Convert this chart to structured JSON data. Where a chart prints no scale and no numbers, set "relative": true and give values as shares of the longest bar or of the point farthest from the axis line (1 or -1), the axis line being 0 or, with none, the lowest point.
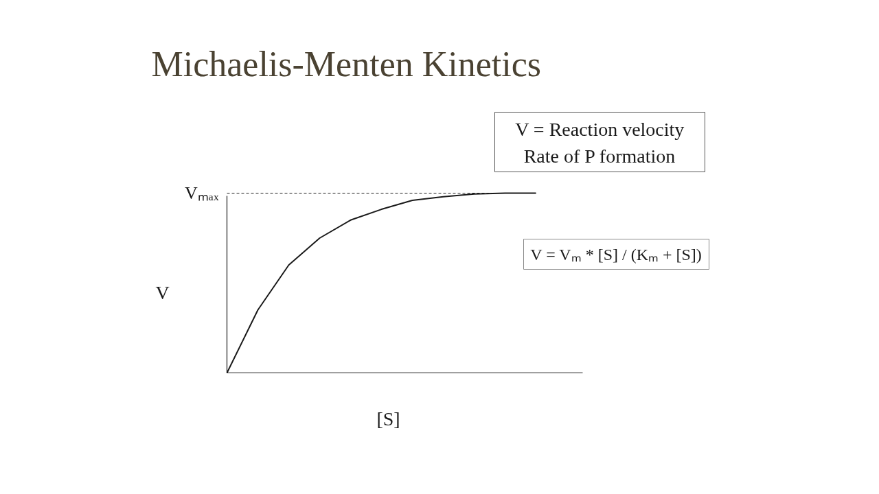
{
  "chart_data": {
    "type": "line",
    "title": "Michaelis-Menten Kinetics",
    "xlabel": "[S]",
    "ylabel": "V",
    "relative": true,
    "categories": [
      null,
      null,
      null,
      null,
      null,
      null,
      null,
      null,
      null,
      null,
      null
    ],
    "series": [
      {
        "color": "#1a1a1a",
        "values": [
          0,
          0.35,
          0.6,
          0.75,
          0.85,
          0.91,
          0.96,
          0.98,
          0.995,
          1,
          1
        ]
      }
    ],
    "ref_lines": [
      {
        "axis": "y",
        "value": 1,
        "label": "Vₘₐₓ",
        "line_style": "dashed",
        "color": "#1a1a1a"
      }
    ],
    "annotations": [
      "V = Reaction velocity",
      "Rate of P formation",
      "V = Vₘ * [S] / (Kₘ + [S])"
    ]
  }
}
